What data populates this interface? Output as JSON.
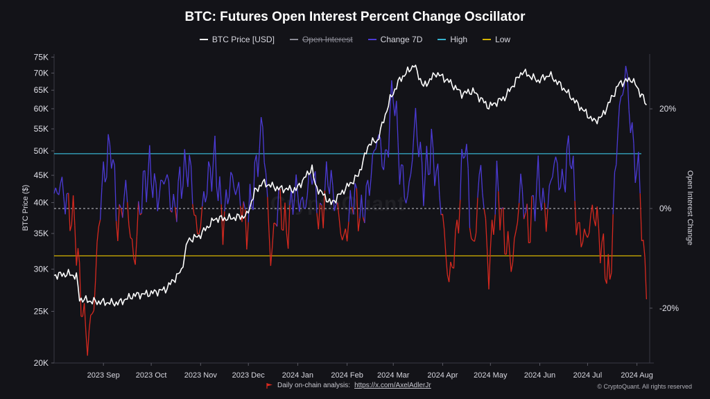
{
  "title": "BTC: Futures Open Interest Percent Change Oscillator",
  "legend": [
    {
      "label": "BTC Price [USD]",
      "color": "#ffffff",
      "struck": false
    },
    {
      "label": "Open Interest",
      "color": "#8c8c96",
      "struck": true
    },
    {
      "label": "Change 7D",
      "color": "#4c3bd6",
      "struck": false
    },
    {
      "label": "High",
      "color": "#37b3cf",
      "struck": false
    },
    {
      "label": "Low",
      "color": "#d6b400",
      "struck": false
    }
  ],
  "watermark": "CryptoQuant",
  "footer": {
    "prefix": "Daily on-chain analysis:",
    "link": "https://x.com/AxelAdlerJr"
  },
  "copyright": "© CryptoQuant. All rights reserved",
  "chart_data": {
    "type": "line",
    "title": "BTC: Futures Open Interest Percent Change Oscillator",
    "ylabel_left": "BTC Price ($)",
    "ylabel_right": "Open Interest Change",
    "y_left_scale": "log",
    "y_left_range": [
      20000,
      76000
    ],
    "y_left_ticks": [
      20000,
      25000,
      30000,
      35000,
      40000,
      45000,
      50000,
      55000,
      60000,
      65000,
      70000,
      75000
    ],
    "y_left_tick_labels": [
      "20K",
      "25K",
      "30K",
      "35K",
      "40K",
      "45K",
      "50K",
      "55K",
      "60K",
      "65K",
      "70K",
      "75K"
    ],
    "y_right_range": [
      -31,
      31
    ],
    "y_right_ticks": [
      -20,
      0,
      20
    ],
    "y_right_tick_labels": [
      "-20%",
      "0%",
      "20%"
    ],
    "x_range": [
      "2023-08-01",
      "2024-08-09"
    ],
    "x_ticks": [
      "2023-09-01",
      "2023-10-01",
      "2023-11-01",
      "2023-12-01",
      "2024-01-01",
      "2024-02-01",
      "2024-03-01",
      "2024-04-01",
      "2024-05-01",
      "2024-06-01",
      "2024-07-01",
      "2024-08-01"
    ],
    "x_tick_labels": [
      "2023 Sep",
      "2023 Oct",
      "2023 Nov",
      "2023 Dec",
      "2024 Jan",
      "2024 Feb",
      "2024 Mar",
      "2024 Apr",
      "2024 May",
      "2024 Jun",
      "2024 Jul",
      "2024 Aug"
    ],
    "thresholds": {
      "high": 11,
      "low": -9.5,
      "zero": 0
    },
    "series": [
      {
        "name": "BTC Price [USD]",
        "color": "#ffffff",
        "axis": "left",
        "x": [
          "2023-08-01",
          "2023-08-10",
          "2023-08-15",
          "2023-08-17",
          "2023-08-25",
          "2023-09-01",
          "2023-09-10",
          "2023-09-20",
          "2023-09-30",
          "2023-10-10",
          "2023-10-20",
          "2023-10-24",
          "2023-10-31",
          "2023-11-10",
          "2023-11-20",
          "2023-11-30",
          "2023-12-05",
          "2023-12-10",
          "2023-12-20",
          "2023-12-31",
          "2024-01-10",
          "2024-01-12",
          "2024-01-22",
          "2024-01-31",
          "2024-02-08",
          "2024-02-15",
          "2024-02-20",
          "2024-02-28",
          "2024-03-05",
          "2024-03-14",
          "2024-03-20",
          "2024-03-28",
          "2024-04-05",
          "2024-04-13",
          "2024-04-20",
          "2024-04-30",
          "2024-05-10",
          "2024-05-21",
          "2024-05-31",
          "2024-06-07",
          "2024-06-15",
          "2024-06-24",
          "2024-07-05",
          "2024-07-10",
          "2024-07-21",
          "2024-07-29",
          "2024-08-02",
          "2024-08-05",
          "2024-08-07"
        ],
        "values": [
          29200,
          29400,
          29100,
          26400,
          26100,
          26000,
          25900,
          26800,
          27000,
          27500,
          29800,
          34000,
          34600,
          37300,
          37400,
          37800,
          41900,
          43600,
          42500,
          42300,
          46500,
          43000,
          39800,
          42500,
          45000,
          51800,
          52200,
          62500,
          68000,
          72500,
          66000,
          70000,
          67500,
          64000,
          64800,
          60500,
          63000,
          70500,
          67700,
          69500,
          66000,
          61500,
          56800,
          58000,
          67000,
          68200,
          65000,
          63000,
          60500
        ]
      },
      {
        "name": "Change 7D",
        "axis": "right",
        "color_above": "#4c3bd6",
        "color_below": "#d7291f",
        "x": [
          "2023-08-01",
          "2023-08-05",
          "2023-08-10",
          "2023-08-14",
          "2023-08-18",
          "2023-08-22",
          "2023-08-26",
          "2023-08-30",
          "2023-09-02",
          "2023-09-06",
          "2023-09-10",
          "2023-09-15",
          "2023-09-20",
          "2023-09-25",
          "2023-09-30",
          "2023-10-05",
          "2023-10-10",
          "2023-10-15",
          "2023-10-20",
          "2023-10-25",
          "2023-10-30",
          "2023-11-05",
          "2023-11-10",
          "2023-11-15",
          "2023-11-20",
          "2023-11-25",
          "2023-11-30",
          "2023-12-05",
          "2023-12-10",
          "2023-12-15",
          "2023-12-20",
          "2023-12-25",
          "2023-12-30",
          "2024-01-05",
          "2024-01-10",
          "2024-01-15",
          "2024-01-20",
          "2024-01-25",
          "2024-01-30",
          "2024-02-05",
          "2024-02-10",
          "2024-02-15",
          "2024-02-20",
          "2024-02-25",
          "2024-03-01",
          "2024-03-05",
          "2024-03-10",
          "2024-03-15",
          "2024-03-20",
          "2024-03-25",
          "2024-03-30",
          "2024-04-05",
          "2024-04-10",
          "2024-04-15",
          "2024-04-20",
          "2024-04-25",
          "2024-04-30",
          "2024-05-05",
          "2024-05-10",
          "2024-05-15",
          "2024-05-20",
          "2024-05-25",
          "2024-05-31",
          "2024-06-05",
          "2024-06-10",
          "2024-06-15",
          "2024-06-20",
          "2024-06-25",
          "2024-06-30",
          "2024-07-05",
          "2024-07-10",
          "2024-07-15",
          "2024-07-20",
          "2024-07-25",
          "2024-07-30",
          "2024-08-03",
          "2024-08-05",
          "2024-08-07"
        ],
        "values": [
          2,
          5,
          0,
          -3,
          -18,
          -27,
          -19,
          1,
          8,
          13,
          -4,
          4,
          -11,
          3,
          8,
          2,
          7,
          -1,
          6,
          9,
          -6,
          5,
          10,
          -3,
          6,
          3,
          -4,
          6,
          17,
          -10,
          2,
          -5,
          4,
          0,
          8,
          -3,
          7,
          1,
          -7,
          3,
          -2,
          5,
          15,
          8,
          25,
          9,
          1,
          18,
          5,
          12,
          4,
          -15,
          -5,
          15,
          -10,
          9,
          -13,
          5,
          -6,
          -11,
          5,
          -5,
          6,
          -2,
          10,
          4,
          13,
          -5,
          -6,
          0,
          -8,
          -15,
          17,
          28,
          11,
          5,
          -10,
          -14
        ]
      }
    ]
  }
}
